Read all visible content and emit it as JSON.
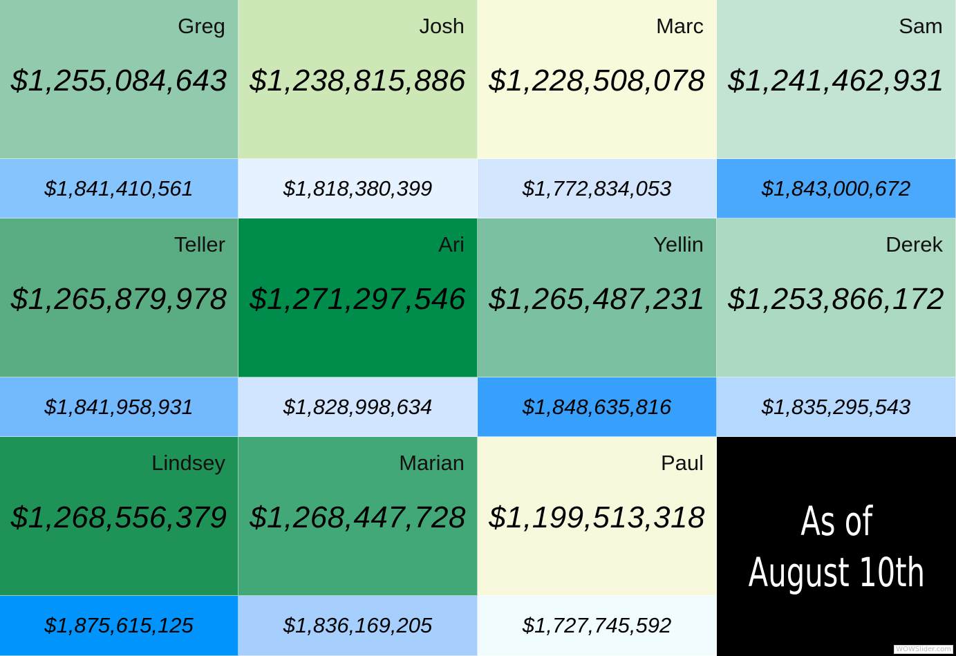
{
  "tiles": [
    {
      "name": "Greg",
      "amount": "$1,255,084,643",
      "color": "#91caad"
    },
    {
      "name": "Josh",
      "amount": "$1,238,815,886",
      "color": "#cde8b6"
    },
    {
      "name": "Marc",
      "amount": "$1,228,508,078",
      "color": "#f9f9dc"
    },
    {
      "name": "Sam",
      "amount": "$1,241,462,931",
      "color": "#c3e3d3"
    },
    {
      "name": "Teller",
      "amount": "$1,265,879,978",
      "color": "#5aad82"
    },
    {
      "name": "Ari",
      "amount": "$1,271,297,546",
      "color": "#008d4c"
    },
    {
      "name": "Yellin",
      "amount": "$1,265,487,231",
      "color": "#7bc1a1"
    },
    {
      "name": "Derek",
      "amount": "$1,253,866,172",
      "color": "#acd9c1"
    },
    {
      "name": "Lindsey",
      "amount": "$1,268,556,379",
      "color": "#1f9258"
    },
    {
      "name": "Marian",
      "amount": "$1,268,447,728",
      "color": "#43a878"
    },
    {
      "name": "Paul",
      "amount": "$1,199,513,318",
      "color": "#f8f9dc"
    }
  ],
  "bars": [
    {
      "amount": "$1,841,410,561",
      "color": "#86c4fe"
    },
    {
      "amount": "$1,818,380,399",
      "color": "#e6f2ff"
    },
    {
      "amount": "$1,772,834,053",
      "color": "#d4e5fe"
    },
    {
      "amount": "$1,843,000,672",
      "color": "#4aa9fd"
    },
    {
      "amount": "$1,841,958,931",
      "color": "#72b9fe"
    },
    {
      "amount": "$1,828,998,634",
      "color": "#d1e5fe"
    },
    {
      "amount": "$1,848,635,816",
      "color": "#37a0fc"
    },
    {
      "amount": "$1,835,295,543",
      "color": "#b5d8fe"
    },
    {
      "amount": "$1,875,615,125",
      "color": "#0094fc"
    },
    {
      "amount": "$1,836,169,205",
      "color": "#a6cffe"
    },
    {
      "amount": "$1,727,745,592",
      "color": "#f1fcff"
    }
  ],
  "date_panel": {
    "line1": "As of",
    "line2": "August 10th",
    "color": "#000000"
  },
  "watermark": "WOWSlider.com"
}
